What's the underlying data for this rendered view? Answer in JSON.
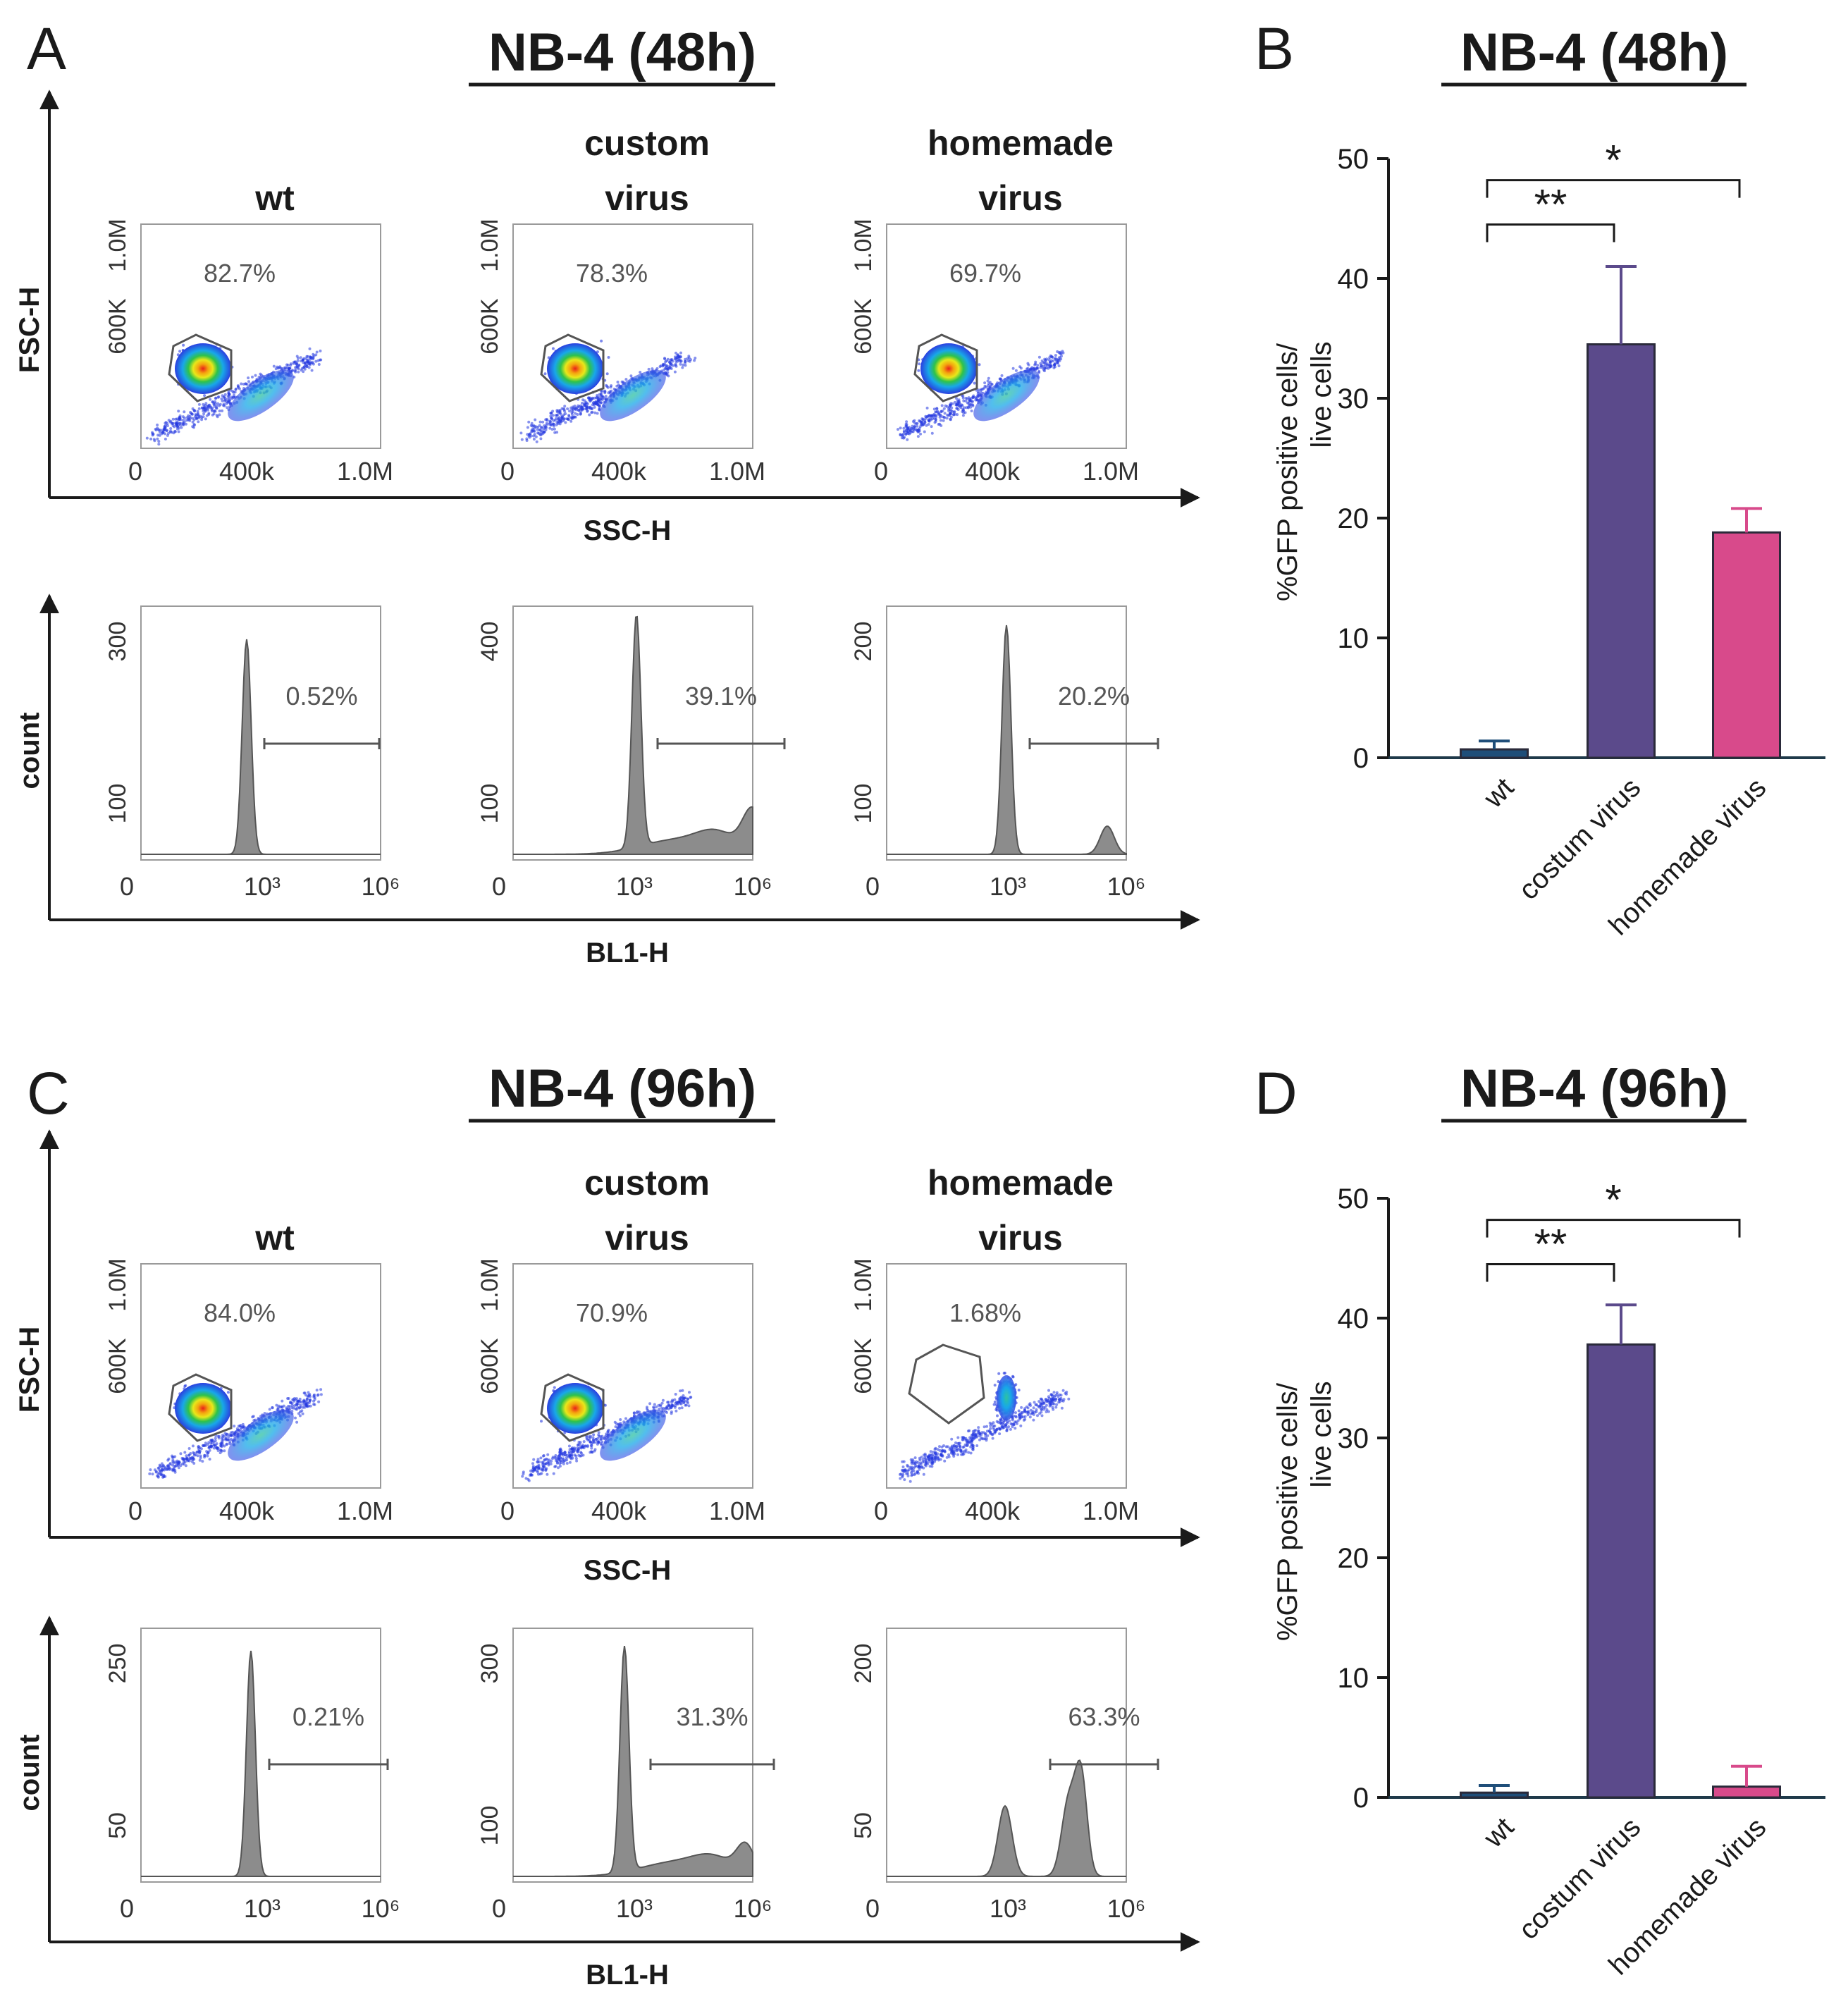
{
  "colors": {
    "wt": "#1f4e79",
    "custom": "#5b4a8b",
    "homemade": "#d84a8b",
    "hist_fill": "#8c8c8c",
    "axis": "#1a1a1a"
  },
  "chart_data": [
    {
      "panel": "A",
      "type": "scatter",
      "title": "NB-4 (48h)",
      "xlabel": "SSC-H",
      "ylabel": "FSC-H",
      "x_ticks": [
        "0",
        "400k",
        "1.0M"
      ],
      "y_ticks": [
        "600K",
        "1.0M"
      ],
      "samples": [
        {
          "name": "wt",
          "gate_percent": "82.7%"
        },
        {
          "name": "custom virus",
          "line1": "custom",
          "line2": "virus",
          "gate_percent": "78.3%"
        },
        {
          "name": "homemade virus",
          "line1": "homemade",
          "line2": "virus",
          "gate_percent": "69.7%"
        }
      ]
    },
    {
      "panel": "A",
      "type": "histogram",
      "xlabel": "BL1-H",
      "ylabel": "count",
      "x_ticks": [
        "0",
        "10³",
        "10⁶"
      ],
      "samples": [
        {
          "name": "wt",
          "y_ticks": [
            "300",
            "100"
          ],
          "ymax": 320,
          "positive_percent": "0.52%"
        },
        {
          "name": "custom virus",
          "y_ticks": [
            "400",
            "100"
          ],
          "ymax": 430,
          "positive_percent": "39.1%"
        },
        {
          "name": "homemade virus",
          "y_ticks": [
            "200",
            "100"
          ],
          "ymax": 215,
          "positive_percent": "20.2%"
        }
      ]
    },
    {
      "panel": "B",
      "type": "bar",
      "title": "NB-4 (48h)",
      "ylabel_line1": "%GFP positive cells/",
      "ylabel_line2": "live cells",
      "categories": [
        "wt",
        "costum virus",
        "homemade virus"
      ],
      "values": [
        0.7,
        34.5,
        18.8
      ],
      "errors": [
        0.7,
        6.5,
        2.0
      ],
      "ylim": [
        0,
        50
      ],
      "yticks": [
        0,
        10,
        20,
        30,
        40,
        50
      ],
      "significance": [
        {
          "from": "wt",
          "to": "costum virus",
          "label": "**"
        },
        {
          "from": "wt",
          "to": "homemade virus",
          "label": "*"
        }
      ]
    },
    {
      "panel": "C",
      "type": "scatter",
      "title": "NB-4 (96h)",
      "xlabel": "SSC-H",
      "ylabel": "FSC-H",
      "x_ticks": [
        "0",
        "400k",
        "1.0M"
      ],
      "y_ticks": [
        "600K",
        "1.0M"
      ],
      "samples": [
        {
          "name": "wt",
          "gate_percent": "84.0%"
        },
        {
          "name": "custom virus",
          "line1": "custom",
          "line2": "virus",
          "gate_percent": "70.9%"
        },
        {
          "name": "homemade virus",
          "line1": "homemade",
          "line2": "virus",
          "gate_percent": "1.68%"
        }
      ]
    },
    {
      "panel": "C",
      "type": "histogram",
      "xlabel": "BL1-H",
      "ylabel": "count",
      "x_ticks": [
        "0",
        "10³",
        "10⁶"
      ],
      "samples": [
        {
          "name": "wt",
          "y_ticks": [
            "250",
            "50"
          ],
          "ymax": 260,
          "positive_percent": "0.21%"
        },
        {
          "name": "custom virus",
          "y_ticks": [
            "300",
            "100"
          ],
          "ymax": 320,
          "positive_percent": "31.3%"
        },
        {
          "name": "homemade virus",
          "y_ticks": [
            "200",
            "50"
          ],
          "ymax": 210,
          "positive_percent": "63.3%"
        }
      ]
    },
    {
      "panel": "D",
      "type": "bar",
      "title": "NB-4 (96h)",
      "ylabel_line1": "%GFP positive cells/",
      "ylabel_line2": "live cells",
      "categories": [
        "wt",
        "costum virus",
        "homemade virus"
      ],
      "values": [
        0.4,
        37.8,
        0.9
      ],
      "errors": [
        0.6,
        3.3,
        1.7
      ],
      "ylim": [
        0,
        50
      ],
      "yticks": [
        0,
        10,
        20,
        30,
        40,
        50
      ],
      "significance": [
        {
          "from": "wt",
          "to": "costum virus",
          "label": "**"
        },
        {
          "from": "wt",
          "to": "homemade virus",
          "label": "*"
        }
      ]
    }
  ]
}
